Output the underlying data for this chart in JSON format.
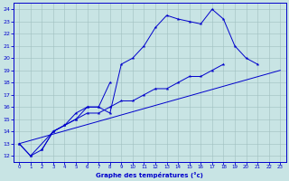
{
  "title": "Graphe des températures (°c)",
  "bg_color": "#c8e4e4",
  "grid_color": "#a0c0c0",
  "line_color": "#0000cc",
  "xlim": [
    -0.5,
    23.5
  ],
  "ylim": [
    11.5,
    24.5
  ],
  "yticks": [
    12,
    13,
    14,
    15,
    16,
    17,
    18,
    19,
    20,
    21,
    22,
    23,
    24
  ],
  "xticks": [
    0,
    1,
    2,
    3,
    4,
    5,
    6,
    7,
    8,
    9,
    10,
    11,
    12,
    13,
    14,
    15,
    16,
    17,
    18,
    19,
    20,
    21,
    22,
    23
  ],
  "series1_x": [
    0,
    1,
    3,
    4,
    5,
    6,
    7,
    8,
    9,
    10,
    11,
    12,
    13,
    14,
    15,
    16,
    17,
    18,
    19,
    20,
    21
  ],
  "series1_y": [
    13,
    12,
    14,
    14.5,
    15.5,
    16,
    16,
    15.5,
    19.5,
    20,
    21,
    22.5,
    23.5,
    23.2,
    23,
    22.8,
    24,
    23.2,
    21,
    20,
    19.5
  ],
  "series2_x": [
    2,
    3,
    4,
    5,
    6,
    7,
    8
  ],
  "series2_y": [
    12.5,
    14,
    14.5,
    15,
    16,
    16,
    18
  ],
  "series3_x": [
    0,
    1,
    2,
    3,
    4,
    5,
    6,
    7,
    8,
    9,
    10,
    11,
    12,
    13,
    14,
    15,
    16,
    17,
    18
  ],
  "series3_y": [
    13,
    12,
    12.5,
    14,
    14.5,
    15,
    15.5,
    15.5,
    16,
    16.5,
    16.5,
    17,
    17.5,
    17.5,
    18,
    18.5,
    18.5,
    19,
    19.5
  ],
  "series4_x": [
    0,
    23
  ],
  "series4_y": [
    13,
    19
  ]
}
